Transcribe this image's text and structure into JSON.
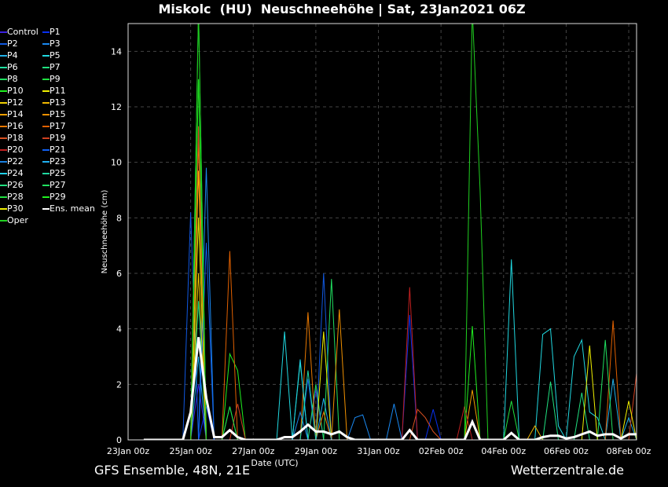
{
  "title": "Miskolc  (HU)  Neuschneehöhe | Sat, 23Jan2021 06Z",
  "footer": {
    "left": "GFS Ensemble, 48N, 21E",
    "right": "Wetterzentrale.de"
  },
  "chart_data": {
    "type": "line",
    "title": "Miskolc  (HU)  Neuschneehöhe | Sat, 23Jan2021 06Z",
    "xlabel": "Date (UTC)",
    "ylabel": "Neuschneehöhe (cm)",
    "ylim": [
      0,
      15
    ],
    "xlim": [
      "23Jan 00z",
      "08Feb 06z"
    ],
    "x_step": "6h",
    "yticks": [
      "0",
      "2",
      "4",
      "6",
      "8",
      "10",
      "12",
      "14"
    ],
    "xticks": [
      "23Jan 00z",
      "25Jan 00z",
      "27Jan 00z",
      "29Jan 00z",
      "31Jan 00z",
      "02Feb 00z",
      "04Feb 00z",
      "06Feb 00z",
      "08Feb 00z"
    ],
    "grid": true,
    "legend_position": "left-outside",
    "series": [
      {
        "name": "Control",
        "color": "#3a20e0",
        "points": [
          [
            "25Jan 06z",
            2.0
          ],
          [
            "29Jan 00z",
            1.8
          ]
        ]
      },
      {
        "name": "P1",
        "color": "#0830f0",
        "points": [
          [
            "25Jan 12z",
            1.2
          ],
          [
            "1Feb 00z",
            4.5
          ],
          [
            "1Feb 18z",
            1.1
          ]
        ]
      },
      {
        "name": "P2",
        "color": "#1058e0",
        "points": [
          [
            "25Jan 00z",
            8.2
          ],
          [
            "29Jan 06z",
            6.0
          ],
          [
            "28Jan 18z",
            2.2
          ]
        ]
      },
      {
        "name": "P3",
        "color": "#1a88f0",
        "points": [
          [
            "25Jan 12z",
            9.8
          ],
          [
            "30Jan 06z",
            0.8
          ],
          [
            "30Jan 12z",
            0.9
          ],
          [
            "31Jan 12z",
            1.3
          ]
        ]
      },
      {
        "name": "P4",
        "color": "#20b0e8",
        "points": [
          [
            "25Jan 06z",
            3.0
          ],
          [
            "7Feb 12z",
            2.2
          ],
          [
            "8Feb 00z",
            0.8
          ]
        ]
      },
      {
        "name": "P5",
        "color": "#20d8e0",
        "points": [
          [
            "28Jan 00z",
            3.9
          ],
          [
            "4Feb 06z",
            6.5
          ],
          [
            "5Feb 06z",
            3.8
          ],
          [
            "5Feb 12z",
            4.0
          ],
          [
            "5Feb 18z",
            0.5
          ],
          [
            "6Feb 06z",
            3.0
          ],
          [
            "6Feb 12z",
            3.6
          ],
          [
            "6Feb 18z",
            1.0
          ],
          [
            "7Feb 00z",
            0.8
          ]
        ]
      },
      {
        "name": "P6",
        "color": "#20e0a0",
        "points": [
          [
            "28Jan 12z",
            2.8
          ],
          [
            "26Jan 06z",
            1.2
          ]
        ]
      },
      {
        "name": "P7",
        "color": "#20e080",
        "points": [
          [
            "25Jan 06z",
            5.0
          ],
          [
            "5Feb 12z",
            2.1
          ]
        ]
      },
      {
        "name": "P8",
        "color": "#20e060",
        "points": [
          [
            "29Jan 12z",
            5.8
          ],
          [
            "29Jan 00z",
            2.0
          ]
        ]
      },
      {
        "name": "P9",
        "color": "#20e040",
        "points": [
          [
            "25Jan 06z",
            15.5
          ],
          [
            "4Feb 06z",
            1.4
          ]
        ]
      },
      {
        "name": "P10",
        "color": "#20f020",
        "points": [
          [
            "26Jan 06z",
            3.1
          ],
          [
            "26Jan 12z",
            2.5
          ],
          [
            "3Feb 00z",
            4.1
          ]
        ]
      },
      {
        "name": "P11",
        "color": "#f0f000",
        "points": [
          [
            "25Jan 06z",
            8.0
          ],
          [
            "29Jan 06z",
            3.9
          ]
        ]
      },
      {
        "name": "P12",
        "color": "#f0d000",
        "points": [
          [
            "25Jan 06z",
            6.0
          ]
        ]
      },
      {
        "name": "P13",
        "color": "#f0b800",
        "points": [
          [
            "25Jan 06z",
            9.7
          ],
          [
            "5Feb 00z",
            0.5
          ]
        ]
      },
      {
        "name": "P14",
        "color": "#f0a000",
        "points": [
          [
            "3Feb 00z",
            1.8
          ]
        ]
      },
      {
        "name": "P15",
        "color": "#f09000",
        "points": [
          [
            "25Jan 06z",
            10.8
          ],
          [
            "29Jan 18z",
            4.7
          ]
        ]
      },
      {
        "name": "P16",
        "color": "#e87800",
        "points": [
          [
            "28Jan 18z",
            4.6
          ],
          [
            "29Jan 06z",
            1.0
          ]
        ]
      },
      {
        "name": "P17",
        "color": "#e06000",
        "points": [
          [
            "26Jan 06z",
            6.8
          ],
          [
            "7Feb 12z",
            4.3
          ]
        ]
      },
      {
        "name": "P18",
        "color": "#d85020",
        "points": [
          [
            "1Feb 06z",
            1.1
          ],
          [
            "1Feb 12z",
            0.8
          ],
          [
            "1Feb 18z",
            0.3
          ]
        ]
      },
      {
        "name": "P19",
        "color": "#d04020",
        "points": [
          [
            "25Jan 06z",
            11.3
          ],
          [
            "26Jan 12z",
            1.3
          ],
          [
            "8Feb 06z",
            2.4
          ]
        ]
      },
      {
        "name": "P20",
        "color": "#c02020",
        "points": [
          [
            "1Feb 00z",
            5.5
          ],
          [
            "2Feb 18z",
            1.2
          ]
        ]
      },
      {
        "name": "P21",
        "color": "#1060f0",
        "points": [
          [
            "25Jan 12z",
            7.1
          ]
        ]
      },
      {
        "name": "P22",
        "color": "#1a80e0",
        "points": [
          [
            "28Jan 12z",
            1.0
          ]
        ]
      },
      {
        "name": "P23",
        "color": "#20b0f0",
        "points": [
          [
            "29Jan 06z",
            1.5
          ]
        ]
      },
      {
        "name": "P24",
        "color": "#20d0e8",
        "points": [
          [
            "28Jan 12z",
            2.9
          ]
        ]
      },
      {
        "name": "P25",
        "color": "#20d8a0",
        "points": [
          [
            "28Jan 18z",
            2.5
          ]
        ]
      },
      {
        "name": "P26",
        "color": "#20e080",
        "points": [
          [
            "6Feb 12z",
            1.7
          ]
        ]
      },
      {
        "name": "P27",
        "color": "#20e060",
        "points": [
          [
            "7Feb 06z",
            3.6
          ]
        ]
      },
      {
        "name": "P28",
        "color": "#20e040",
        "points": [
          [
            "26Jan 06z",
            1.2
          ]
        ]
      },
      {
        "name": "P29",
        "color": "#20f020",
        "points": [
          [
            "25Jan 06z",
            13.0
          ]
        ]
      },
      {
        "name": "P30",
        "color": "#f0f000",
        "points": [
          [
            "6Feb 18z",
            3.4
          ],
          [
            "8Feb 00z",
            1.4
          ]
        ]
      },
      {
        "name": "Ens. mean",
        "color": "#ffffff",
        "points": [
          [
            "25Jan 00z",
            1.0
          ],
          [
            "25Jan 06z",
            3.7
          ],
          [
            "25Jan 12z",
            1.5
          ],
          [
            "25Jan 18z",
            0.1
          ],
          [
            "26Jan 00z",
            0.1
          ],
          [
            "26Jan 06z",
            0.35
          ],
          [
            "26Jan 12z",
            0.1
          ],
          [
            "28Jan 00z",
            0.1
          ],
          [
            "28Jan 06z",
            0.1
          ],
          [
            "28Jan 12z",
            0.3
          ],
          [
            "28Jan 18z",
            0.55
          ],
          [
            "29Jan 00z",
            0.3
          ],
          [
            "29Jan 06z",
            0.3
          ],
          [
            "29Jan 12z",
            0.2
          ],
          [
            "29Jan 18z",
            0.3
          ],
          [
            "30Jan 00z",
            0.1
          ],
          [
            "1Feb 00z",
            0.35
          ],
          [
            "3Feb 00z",
            0.65
          ],
          [
            "4Feb 06z",
            0.25
          ],
          [
            "5Feb 06z",
            0.1
          ],
          [
            "5Feb 12z",
            0.15
          ],
          [
            "5Feb 18z",
            0.15
          ],
          [
            "6Feb 00z",
            0.05
          ],
          [
            "6Feb 06z",
            0.1
          ],
          [
            "6Feb 12z",
            0.2
          ],
          [
            "6Feb 18z",
            0.3
          ],
          [
            "7Feb 00z",
            0.15
          ],
          [
            "7Feb 06z",
            0.2
          ],
          [
            "7Feb 12z",
            0.2
          ],
          [
            "7Feb 18z",
            0.05
          ],
          [
            "8Feb 00z",
            0.2
          ],
          [
            "8Feb 06z",
            0.2
          ]
        ]
      },
      {
        "name": "Oper",
        "color": "#20d020",
        "points": [
          [
            "25Jan 06z",
            15.5
          ],
          [
            "3Feb 00z",
            15.5
          ],
          [
            "3Feb 06z",
            9.0
          ]
        ]
      }
    ]
  }
}
